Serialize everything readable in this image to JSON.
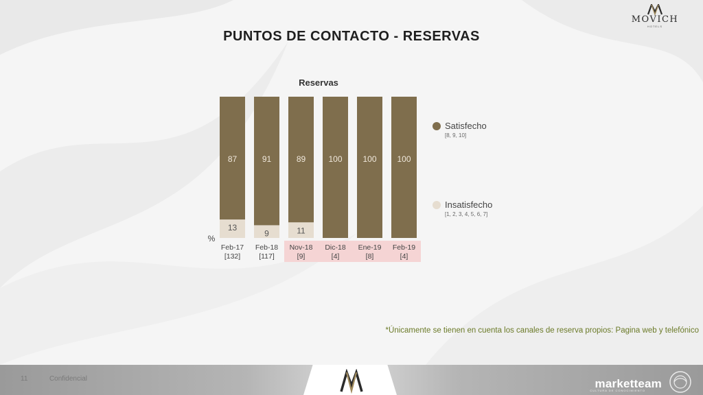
{
  "brand": {
    "name": "MOVICH",
    "subtitle": "HOTELS"
  },
  "page": {
    "title": "PUNTOS DE CONTACTO - RESERVAS",
    "footnote": "*Únicamente se tienen en cuenta los canales de reserva propios: Pagina web y telefónico",
    "page_number": "11",
    "confidential": "Confidencial"
  },
  "footer": {
    "agency": "marketteam",
    "agency_tagline": "CULTURA DE CONOCIMIENTO"
  },
  "colors": {
    "satisfied": "#7f6e4d",
    "dissatisfied": "#e6ddd0",
    "highlight": "#f5d4d4",
    "label_light": "#f0e8dc",
    "title": "#1f1f1f",
    "footnote": "#6b7a28"
  },
  "legend": [
    {
      "label": "Satisfecho",
      "scale": "[8, 9, 10]",
      "color": "#7f6e4d"
    },
    {
      "label": "Insatisfecho",
      "scale": "[1, 2, 3, 4, 5, 6, 7]",
      "color": "#e6ddd0"
    }
  ],
  "chart_data": {
    "type": "bar",
    "stacked": true,
    "percent_stacked": true,
    "title": "Reservas",
    "ylabel": "%",
    "ylim": [
      0,
      100
    ],
    "categories": [
      "Feb-17",
      "Feb-18",
      "Nov-18",
      "Dic-18",
      "Ene-19",
      "Feb-19"
    ],
    "bases": [
      "[132]",
      "[117]",
      "[9]",
      "[4]",
      "[8]",
      "[4]"
    ],
    "highlighted": [
      false,
      false,
      true,
      true,
      true,
      true
    ],
    "series": [
      {
        "name": "Insatisfecho",
        "values": [
          13,
          9,
          11,
          0,
          0,
          0
        ]
      },
      {
        "name": "Satisfecho",
        "values": [
          87,
          91,
          89,
          100,
          100,
          100
        ]
      }
    ],
    "legend_position": "right",
    "grid": false
  }
}
